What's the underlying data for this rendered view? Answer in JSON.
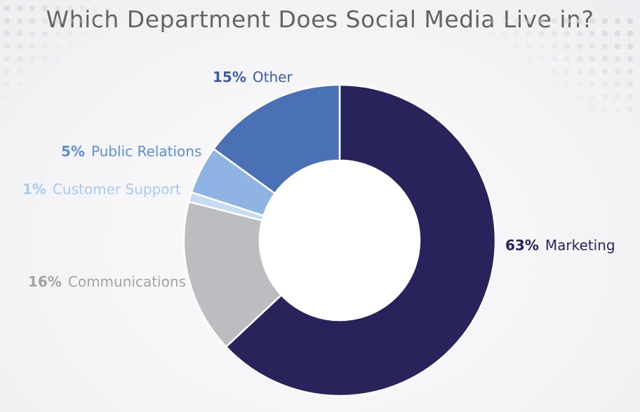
{
  "chart_data": {
    "type": "pie",
    "title": "Which Department Does Social Media Live in?",
    "donut": true,
    "slices": [
      {
        "label": "Marketing",
        "percent_label": "63%",
        "value": 63,
        "color": "#29235c"
      },
      {
        "label": "Communications",
        "percent_label": "16%",
        "value": 16,
        "color": "#bcbdc1"
      },
      {
        "label": "Customer Support",
        "percent_label": "1%",
        "value": 1,
        "color": "#c5dcf3"
      },
      {
        "label": "Public Relations",
        "percent_label": "5%",
        "value": 5,
        "color": "#8fb4e3"
      },
      {
        "label": "Other",
        "percent_label": "15%",
        "value": 15,
        "color": "#4a70b5"
      }
    ],
    "label_colors": {
      "Marketing": "#29235c",
      "Communications": "#a3a3a6",
      "Customer Support": "#a9cbee",
      "Public Relations": "#5f8fd2",
      "Other": "#3d5da3"
    }
  }
}
